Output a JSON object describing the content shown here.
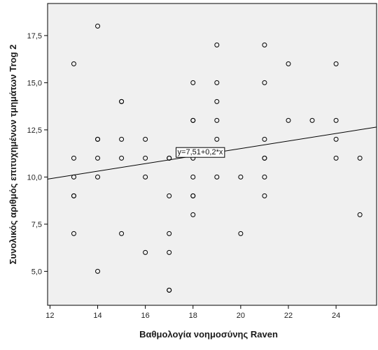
{
  "chart_data": {
    "type": "scatter",
    "title": "",
    "xlabel": "Βαθμολογία νοημοσύνης Raven",
    "ylabel": "Συνολικός αριθμός επιτυχημένων τμημάτων Trog 2",
    "xlim": [
      11.9,
      25.7
    ],
    "ylim": [
      3.2,
      19.2
    ],
    "x_ticks": [
      "12",
      "14",
      "16",
      "18",
      "20",
      "22",
      "24"
    ],
    "y_ticks": [
      "5,0",
      "7,5",
      "10,0",
      "12,5",
      "15,0",
      "17,5"
    ],
    "grid": false,
    "plot_background": "#f0f0f0",
    "marker_color": "#000000",
    "fit_line": {
      "intercept": 7.51,
      "slope": 0.2,
      "label": "y=7,51+0,2*x",
      "label_at": [
        18.3,
        11.3
      ]
    },
    "points": [
      [
        13,
        16
      ],
      [
        13,
        11
      ],
      [
        13,
        10
      ],
      [
        13,
        9
      ],
      [
        13,
        9
      ],
      [
        13,
        7
      ],
      [
        14,
        18
      ],
      [
        14,
        12
      ],
      [
        14,
        12
      ],
      [
        14,
        11
      ],
      [
        14,
        10
      ],
      [
        14,
        5
      ],
      [
        15,
        14
      ],
      [
        15,
        14
      ],
      [
        15,
        12
      ],
      [
        15,
        11
      ],
      [
        15,
        7
      ],
      [
        16,
        12
      ],
      [
        16,
        11
      ],
      [
        16,
        10
      ],
      [
        16,
        6
      ],
      [
        17,
        11
      ],
      [
        17,
        11
      ],
      [
        17,
        9
      ],
      [
        17,
        7
      ],
      [
        17,
        6
      ],
      [
        17,
        4
      ],
      [
        17,
        4
      ],
      [
        18,
        15
      ],
      [
        18,
        13
      ],
      [
        18,
        13
      ],
      [
        18,
        11
      ],
      [
        18,
        10
      ],
      [
        18,
        9
      ],
      [
        18,
        9
      ],
      [
        18,
        8
      ],
      [
        19,
        17
      ],
      [
        19,
        15
      ],
      [
        19,
        14
      ],
      [
        19,
        13
      ],
      [
        19,
        12
      ],
      [
        19,
        10
      ],
      [
        20,
        10
      ],
      [
        20,
        7
      ],
      [
        21,
        17
      ],
      [
        21,
        15
      ],
      [
        21,
        12
      ],
      [
        21,
        11
      ],
      [
        21,
        11
      ],
      [
        21,
        10
      ],
      [
        21,
        9
      ],
      [
        22,
        16
      ],
      [
        22,
        13
      ],
      [
        23,
        13
      ],
      [
        24,
        16
      ],
      [
        24,
        13
      ],
      [
        24,
        12
      ],
      [
        24,
        11
      ],
      [
        25,
        11
      ],
      [
        25,
        8
      ]
    ]
  }
}
